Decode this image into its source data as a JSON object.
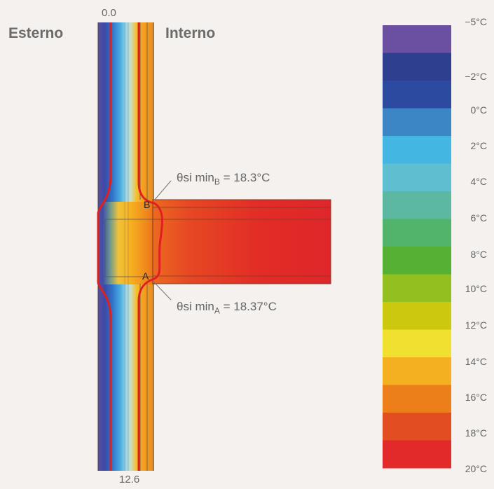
{
  "labels": {
    "left_side": "Esterno",
    "right_side": "Interno",
    "top_dimension": "0.0",
    "bottom_dimension": "12.6",
    "point_a": "A",
    "point_b": "B"
  },
  "annotations": {
    "b": {
      "prefix": "θsi min",
      "subscript": "B",
      "value": " = 18.3°C"
    },
    "a": {
      "prefix": "θsi min",
      "subscript": "A",
      "value": " = 18.37°C"
    }
  },
  "color_scale": {
    "ticks": [
      "−5°C",
      "−2°C",
      "0°C",
      "2°C",
      "4°C",
      "6°C",
      "8°C",
      "10°C",
      "12°C",
      "14°C",
      "16°C",
      "18°C",
      "20°C"
    ],
    "colors": [
      "#6b4fa0",
      "#2f3f8f",
      "#2b4aa0",
      "#3d86c6",
      "#44b6e2",
      "#5fbfd0",
      "#5cb8a0",
      "#52b36a",
      "#55b034",
      "#93c020",
      "#ccc810",
      "#f0e030",
      "#f4b020",
      "#ec7f1a",
      "#e34d22",
      "#e22a2a"
    ]
  }
}
